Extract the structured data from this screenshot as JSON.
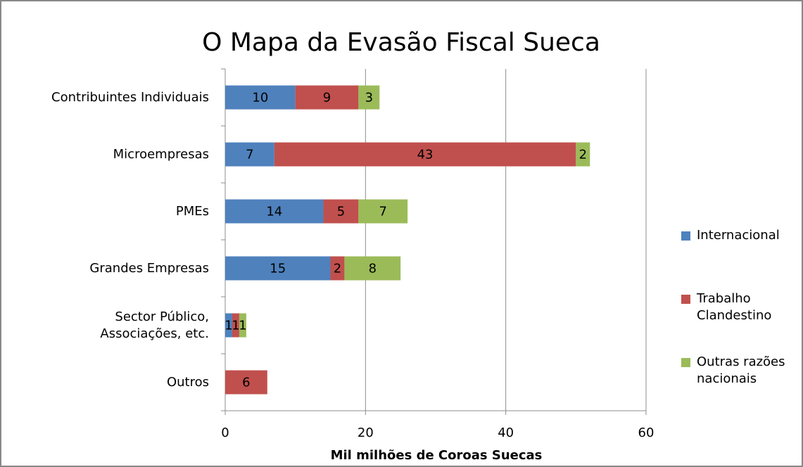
{
  "chart_data": {
    "type": "stacked_barh",
    "title": "O Mapa da Evasão Fiscal Sueca",
    "xlabel": "Mil milhões de Coroas Suecas",
    "categories": [
      "Contribuintes Individuais",
      "Microempresas",
      "PMEs",
      "Grandes Empresas",
      "Sector Público,\nAssociações, etc.",
      "Outros"
    ],
    "series": [
      {
        "name": "Internacional",
        "color": "#4f81bd",
        "values": [
          10,
          7,
          14,
          15,
          1,
          null
        ]
      },
      {
        "name": "Trabalho Clandestino",
        "color": "#c0504d",
        "values": [
          9,
          43,
          5,
          2,
          1,
          6
        ]
      },
      {
        "name": "Outras razões nacionais",
        "color": "#9bbb59",
        "values": [
          3,
          2,
          7,
          8,
          1,
          null
        ]
      }
    ],
    "xlim": [
      0,
      60
    ],
    "xticks": [
      0,
      20,
      40,
      60
    ],
    "grid": true,
    "legend": "right"
  }
}
